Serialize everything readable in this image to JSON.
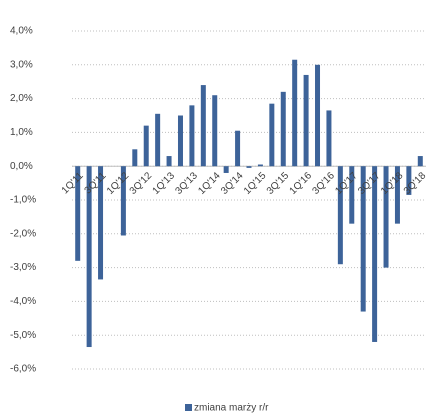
{
  "chart_data": {
    "type": "bar",
    "categories": [
      "1Q'11",
      null,
      "3Q'11",
      null,
      "1Q'12",
      null,
      "3Q'12",
      null,
      "1Q'13",
      null,
      "3Q'13",
      null,
      "1Q'14",
      null,
      "3Q'14",
      null,
      "1Q'15",
      null,
      "3Q'15",
      null,
      "1Q'16",
      null,
      "3Q'16",
      null,
      "1Q'17",
      null,
      "3Q'17",
      null,
      "1Q'18",
      null,
      "3Q'18"
    ],
    "series": [
      {
        "name": "zmiana marży r/r",
        "color": "#3d6399",
        "values": [
          -2.8,
          -5.35,
          -3.35,
          0,
          -2.05,
          0.5,
          1.2,
          1.55,
          0.3,
          1.5,
          1.8,
          2.4,
          2.1,
          -0.2,
          1.05,
          -0.05,
          0.05,
          1.85,
          2.2,
          3.15,
          2.7,
          3.0,
          1.65,
          -2.9,
          -1.7,
          -4.3,
          -5.2,
          -3.0,
          -1.7,
          -0.85,
          0.3
        ]
      }
    ],
    "ylim": [
      -6,
      4
    ],
    "yticks": [
      {
        "value": -6,
        "label": "-6,0%"
      },
      {
        "value": -5,
        "label": "-5,0%"
      },
      {
        "value": -4,
        "label": "-4,0%"
      },
      {
        "value": -3,
        "label": "-3,0%"
      },
      {
        "value": -2,
        "label": "-2,0%"
      },
      {
        "value": -1,
        "label": "-1,0%"
      },
      {
        "value": 0,
        "label": "0,0%"
      },
      {
        "value": 1,
        "label": "1,0%"
      },
      {
        "value": 2,
        "label": "2,0%"
      },
      {
        "value": 3,
        "label": "3,0%"
      },
      {
        "value": 4,
        "label": "4,0%"
      }
    ],
    "grid": true,
    "legend": "bottom"
  }
}
